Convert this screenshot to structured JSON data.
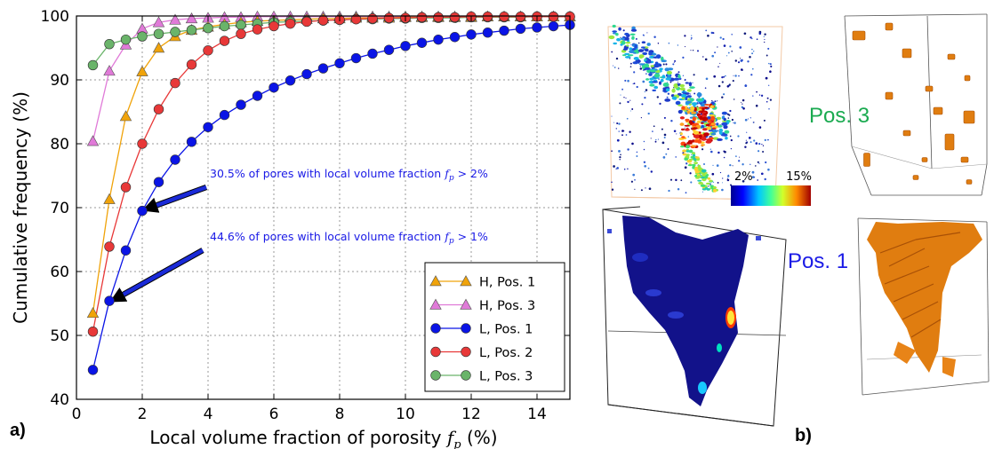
{
  "chart_data": {
    "type": "line",
    "xlabel": "Local volume fraction of porosity",
    "xlabel_symbol": "f",
    "xlabel_subscript": "p",
    "xlabel_unit": "(%)",
    "ylabel": "Cumulative frequency (%)",
    "xlim": [
      0,
      15
    ],
    "ylim": [
      40,
      100
    ],
    "xticks": [
      "0",
      "2",
      "4",
      "6",
      "8",
      "10",
      "12",
      "14"
    ],
    "yticks": [
      "40",
      "50",
      "60",
      "70",
      "80",
      "90",
      "100"
    ],
    "grid": true,
    "legend_position": "lower-right",
    "series": [
      {
        "name": "H, Pos. 1",
        "marker": "triangle",
        "color": "#f0a30a",
        "x": [
          0.5,
          1,
          1.5,
          2,
          2.5,
          3,
          3.5,
          4,
          4.5,
          5,
          5.5,
          6,
          6.5,
          7,
          7.5,
          8,
          8.5,
          9,
          9.5,
          10,
          10.5,
          11,
          11.5,
          12,
          12.5,
          13,
          13.5,
          14,
          14.5,
          15
        ],
        "y": [
          53.5,
          71.3,
          84.3,
          91.3,
          95.0,
          96.8,
          97.8,
          98.3,
          98.7,
          99.0,
          99.2,
          99.3,
          99.4,
          99.5,
          99.6,
          99.6,
          99.7,
          99.7,
          99.7,
          99.8,
          99.8,
          99.8,
          99.8,
          99.8,
          99.9,
          99.9,
          99.9,
          99.9,
          99.9,
          99.9
        ]
      },
      {
        "name": "H, Pos. 3",
        "marker": "triangle",
        "color": "#e07ad8",
        "x": [
          0.5,
          1,
          1.5,
          2,
          2.5,
          3,
          3.5,
          4,
          4.5,
          5,
          5.5,
          6,
          6.5,
          7,
          7.5,
          8,
          8.5,
          9,
          9.5,
          10,
          10.5,
          11,
          11.5,
          12,
          12.5,
          13,
          13.5,
          14,
          14.5,
          15
        ],
        "y": [
          80.4,
          91.4,
          95.5,
          98.0,
          99.0,
          99.4,
          99.6,
          99.7,
          99.8,
          99.8,
          99.9,
          99.9,
          99.9,
          99.9,
          99.9,
          99.9,
          99.9,
          99.9,
          99.9,
          99.9,
          99.9,
          99.9,
          99.9,
          99.9,
          99.9,
          99.9,
          99.9,
          99.9,
          99.9,
          99.9
        ]
      },
      {
        "name": "L, Pos. 1",
        "marker": "circle",
        "color": "#0a14e6",
        "x": [
          0.5,
          1,
          1.5,
          2,
          2.5,
          3,
          3.5,
          4,
          4.5,
          5,
          5.5,
          6,
          6.5,
          7,
          7.5,
          8,
          8.5,
          9,
          9.5,
          10,
          10.5,
          11,
          11.5,
          12,
          12.5,
          13,
          13.5,
          14,
          14.5,
          15
        ],
        "y": [
          44.6,
          55.4,
          63.3,
          69.5,
          74.0,
          77.5,
          80.3,
          82.6,
          84.5,
          86.1,
          87.5,
          88.8,
          89.9,
          90.9,
          91.8,
          92.6,
          93.4,
          94.1,
          94.7,
          95.3,
          95.8,
          96.3,
          96.7,
          97.1,
          97.4,
          97.7,
          98.0,
          98.2,
          98.4,
          98.6
        ]
      },
      {
        "name": "L, Pos. 2",
        "marker": "circle",
        "color": "#e83838",
        "x": [
          0.5,
          1,
          1.5,
          2,
          2.5,
          3,
          3.5,
          4,
          4.5,
          5,
          5.5,
          6,
          6.5,
          7,
          7.5,
          8,
          8.5,
          9,
          9.5,
          10,
          10.5,
          11,
          11.5,
          12,
          12.5,
          13,
          13.5,
          14,
          14.5,
          15
        ],
        "y": [
          50.6,
          63.9,
          73.2,
          80.0,
          85.4,
          89.5,
          92.4,
          94.6,
          96.1,
          97.2,
          97.9,
          98.4,
          98.8,
          99.1,
          99.3,
          99.4,
          99.5,
          99.6,
          99.7,
          99.7,
          99.8,
          99.8,
          99.8,
          99.9,
          99.9,
          99.9,
          99.9,
          99.9,
          99.9,
          99.9
        ]
      },
      {
        "name": "L, Pos. 3",
        "marker": "circle",
        "color": "#6ab46a",
        "x": [
          0.5,
          1,
          1.5,
          2,
          2.5,
          3,
          3.5,
          4,
          4.5,
          5,
          5.5,
          6,
          6.5,
          7,
          7.5,
          8,
          8.5,
          9,
          9.5,
          10,
          10.5,
          11,
          11.5,
          12,
          12.5,
          13,
          13.5,
          14,
          14.5,
          15
        ],
        "y": [
          92.3,
          95.6,
          96.3,
          96.8,
          97.2,
          97.5,
          97.8,
          98.1,
          98.4,
          98.6,
          98.8,
          99.0,
          99.1,
          99.2,
          99.3,
          99.4,
          99.5,
          99.5,
          99.6,
          99.6,
          99.7,
          99.7,
          99.7,
          99.8,
          99.8,
          99.8,
          99.8,
          99.9,
          99.9,
          99.9
        ]
      }
    ],
    "annotations": [
      {
        "text_before": "30.5% of pores with local volume fraction ",
        "symbol": "f",
        "subscript": "p",
        "text_after": " > 2%",
        "arrow_to": [
          2,
          69.5
        ],
        "color": "#1a1ae6"
      },
      {
        "text_before": "44.6% of pores with local volume fraction ",
        "symbol": "f",
        "subscript": "p",
        "text_after": " > 1%",
        "arrow_to": [
          1,
          55.4
        ],
        "color": "#1a1ae6"
      }
    ]
  },
  "panel_a_label": "a)",
  "panel_b_label": "b)",
  "pos3_label": "Pos. 3",
  "pos1_label": "Pos. 1",
  "colorbar": {
    "min_label": "2%",
    "max_label": "15%"
  },
  "colors": {
    "pos3": "#1aaa50",
    "pos1": "#1a1ae6",
    "orange_volume": "#e8800f",
    "dark_blue_volume": "#13138a"
  }
}
